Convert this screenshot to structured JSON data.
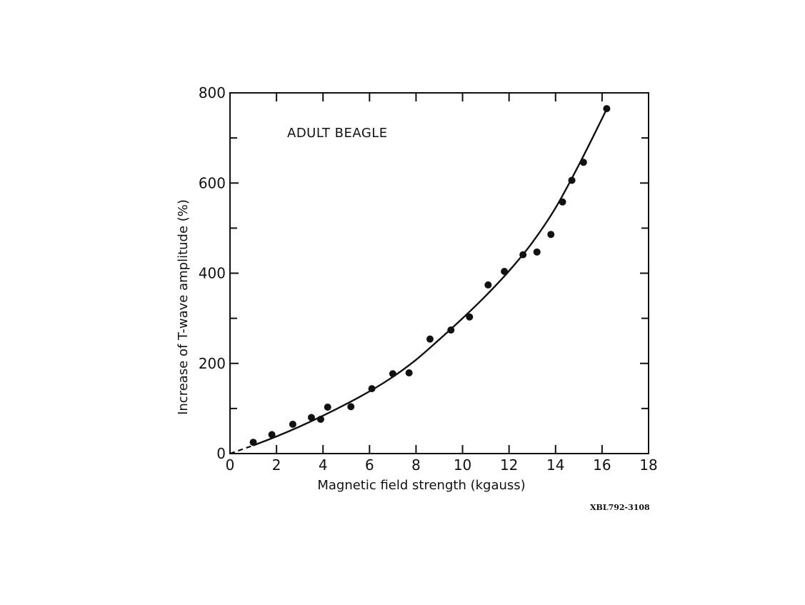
{
  "chart_data": {
    "type": "scatter",
    "annotation": "ADULT BEAGLE",
    "xlabel": "Magnetic field strength  (kgauss)",
    "ylabel": "Increase of T-wave amplitude  (%)",
    "xlim": [
      0,
      18
    ],
    "ylim": [
      0,
      800
    ],
    "x_ticks": [
      0,
      2,
      4,
      6,
      8,
      10,
      12,
      14,
      16,
      18
    ],
    "y_ticks": [
      0,
      200,
      400,
      600,
      800
    ],
    "grid": false,
    "figure_code": "XBL792-3108",
    "series": [
      {
        "marker": "filled-circle",
        "points": [
          [
            1.0,
            25
          ],
          [
            1.8,
            42
          ],
          [
            2.7,
            65
          ],
          [
            3.5,
            80
          ],
          [
            3.9,
            76
          ],
          [
            4.2,
            103
          ],
          [
            5.2,
            104
          ],
          [
            6.1,
            144
          ],
          [
            7.0,
            177
          ],
          [
            7.7,
            179
          ],
          [
            8.6,
            254
          ],
          [
            9.5,
            274
          ],
          [
            10.3,
            303
          ],
          [
            11.1,
            374
          ],
          [
            11.8,
            404
          ],
          [
            12.6,
            441
          ],
          [
            13.2,
            447
          ],
          [
            13.8,
            486
          ],
          [
            14.3,
            558
          ],
          [
            14.7,
            606
          ],
          [
            15.2,
            646
          ],
          [
            16.2,
            765
          ]
        ]
      }
    ],
    "fit_curve": {
      "style": "solid",
      "dashed_segment": [
        [
          0,
          0
        ],
        [
          1.0,
          18
        ]
      ],
      "points": [
        [
          1.0,
          18
        ],
        [
          2,
          38
        ],
        [
          3,
          60
        ],
        [
          4,
          84
        ],
        [
          5,
          110
        ],
        [
          6,
          138
        ],
        [
          7,
          170
        ],
        [
          8,
          208
        ],
        [
          9,
          253
        ],
        [
          10,
          300
        ],
        [
          11,
          350
        ],
        [
          12,
          405
        ],
        [
          13,
          468
        ],
        [
          14,
          545
        ],
        [
          15,
          640
        ],
        [
          16,
          743
        ],
        [
          16.2,
          765
        ]
      ]
    }
  }
}
